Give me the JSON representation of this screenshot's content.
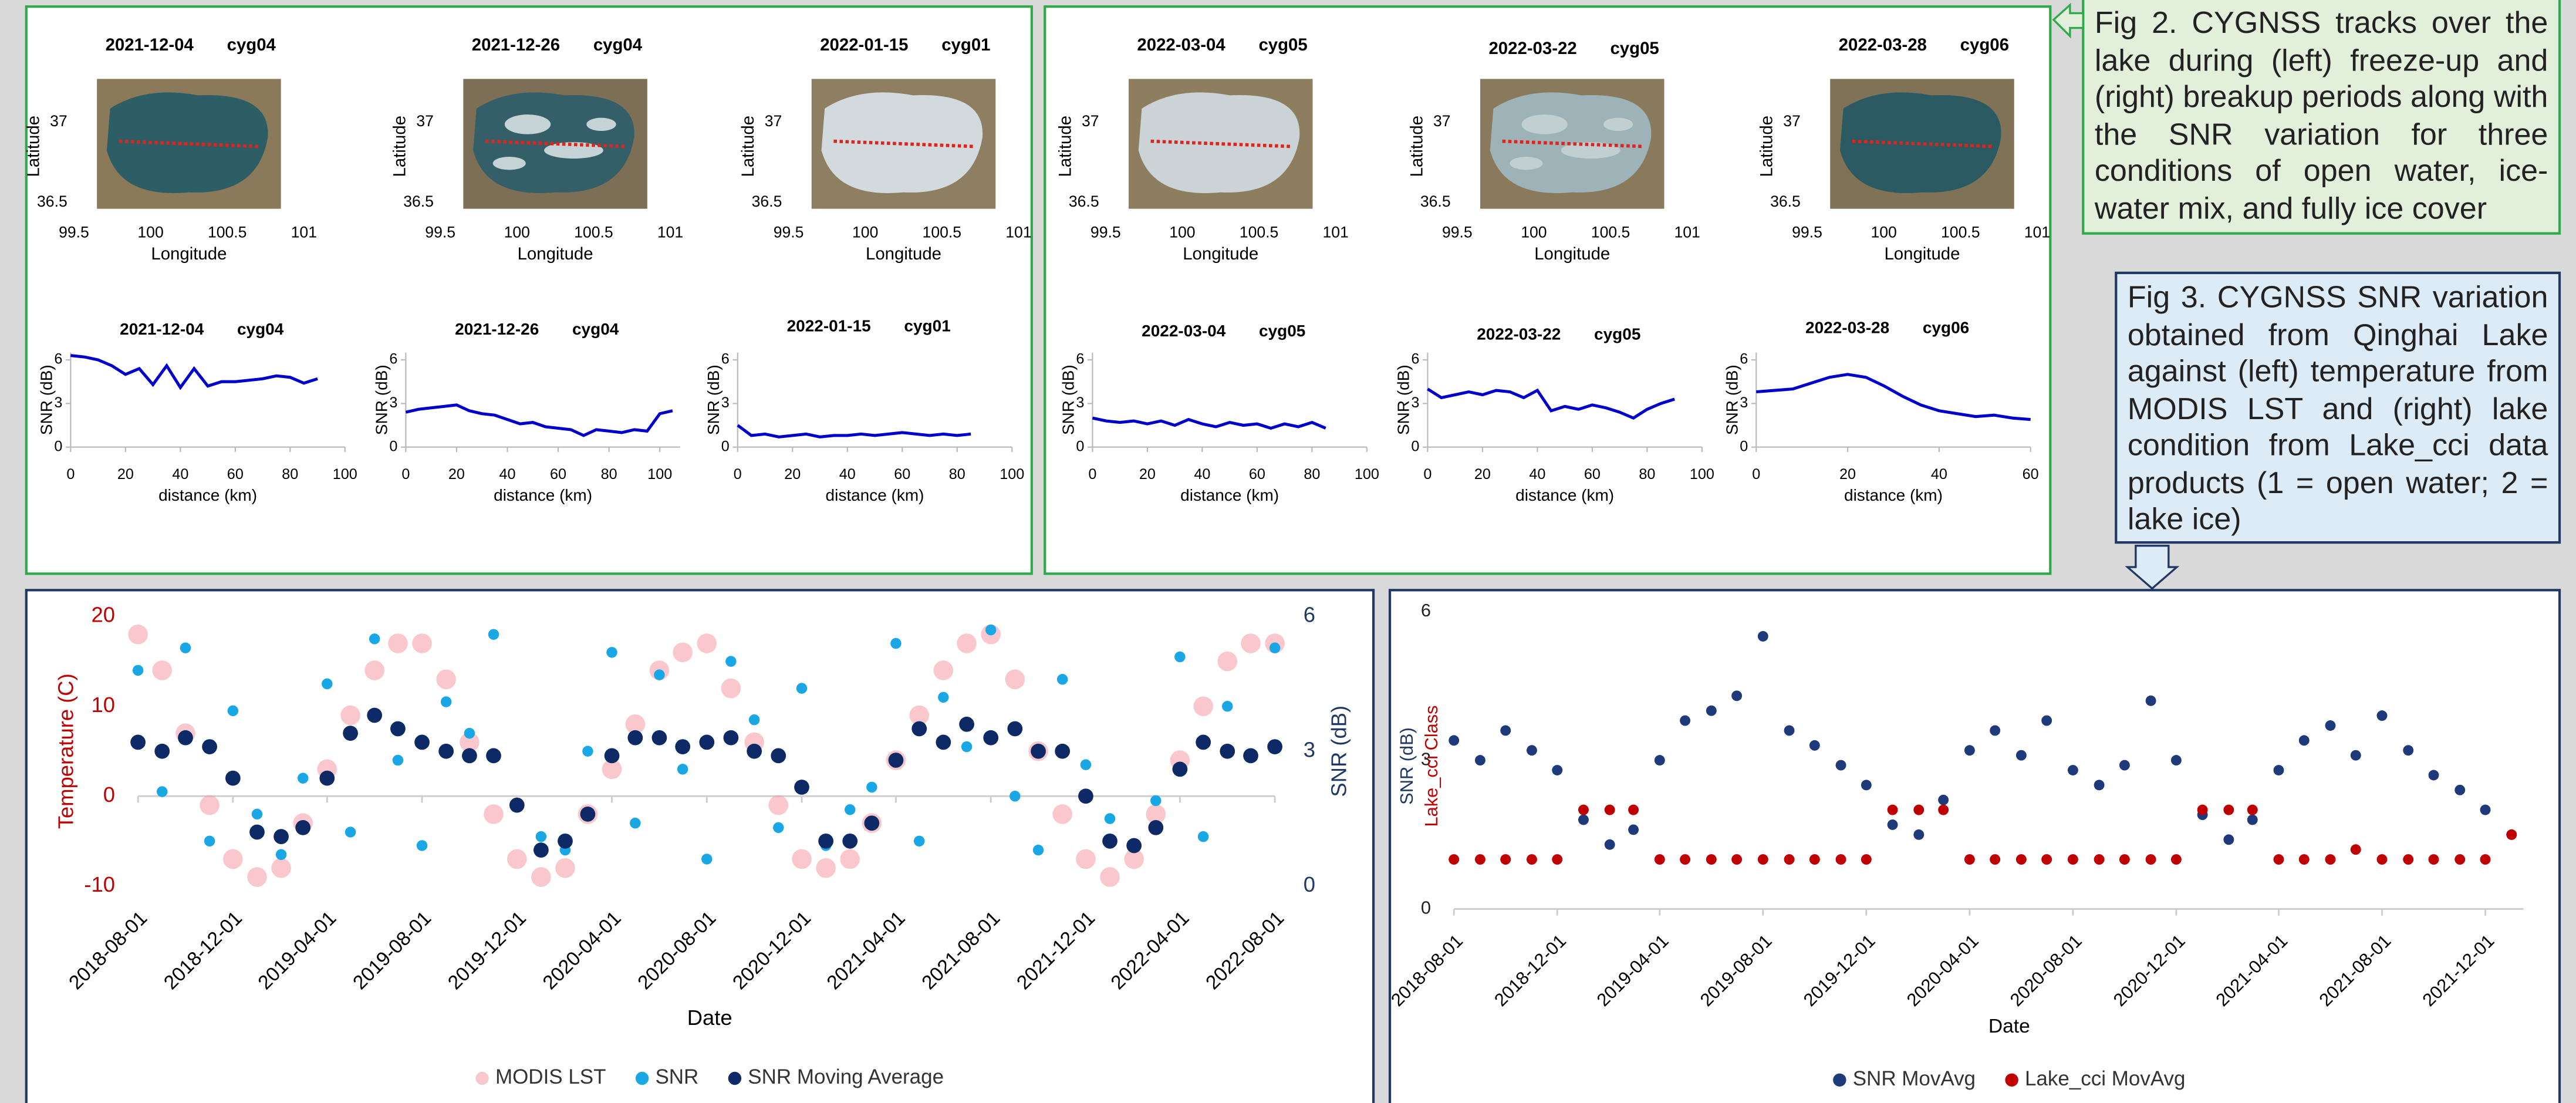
{
  "captions": {
    "fig2": "Fig 2. CYGNSS tracks over the lake during (left) freeze-up and (right) breakup periods along with the SNR variation for three conditions of open water, ice-water mix, and fully ice cover",
    "fig3": "Fig 3. CYGNSS SNR variation obtained from Qinghai Lake against (left) temperature from MODIS LST and (right) lake condition from Lake_cci data products (1 = open water; 2 = lake ice)"
  },
  "chart_data": [
    {
      "type": "map",
      "title": "2021-12-04",
      "satellite": "cyg04",
      "xlabel": "Longitude",
      "ylabel": "Latitude",
      "xlim": [
        99.5,
        101
      ],
      "xticks": [
        99.5,
        100,
        100.5,
        101
      ],
      "ylim": [
        36.4,
        37.3
      ],
      "yticks": [
        36.5,
        37
      ]
    },
    {
      "type": "map",
      "title": "2021-12-26",
      "satellite": "cyg04",
      "xlabel": "Longitude",
      "ylabel": "Latitude",
      "xlim": [
        99.5,
        101
      ],
      "xticks": [
        99.5,
        100,
        100.5,
        101
      ],
      "ylim": [
        36.4,
        37.3
      ],
      "yticks": [
        36.5,
        37
      ]
    },
    {
      "type": "map",
      "title": "2022-01-15",
      "satellite": "cyg01",
      "xlabel": "Longitude",
      "ylabel": "Latitude",
      "xlim": [
        99.5,
        101
      ],
      "xticks": [
        99.5,
        100,
        100.5,
        101
      ],
      "ylim": [
        36.4,
        37.3
      ],
      "yticks": [
        36.5,
        37
      ]
    },
    {
      "type": "map",
      "title": "2022-03-04",
      "satellite": "cyg05",
      "xlabel": "Longitude",
      "ylabel": "Latitude",
      "xlim": [
        99.5,
        101
      ],
      "xticks": [
        99.5,
        100,
        100.5,
        101
      ],
      "ylim": [
        36.4,
        37.3
      ],
      "yticks": [
        36.5,
        37
      ]
    },
    {
      "type": "map",
      "title": "2022-03-22",
      "satellite": "cyg05",
      "xlabel": "Longitude",
      "ylabel": "Latitude",
      "xlim": [
        99.5,
        101
      ],
      "xticks": [
        99.5,
        100,
        100.5,
        101
      ],
      "ylim": [
        36.4,
        37.3
      ],
      "yticks": [
        36.5,
        37
      ]
    },
    {
      "type": "map",
      "title": "2022-03-28",
      "satellite": "cyg06",
      "xlabel": "Longitude",
      "ylabel": "Latitude",
      "xlim": [
        99.5,
        101
      ],
      "xticks": [
        99.5,
        100,
        100.5,
        101
      ],
      "ylim": [
        36.4,
        37.3
      ],
      "yticks": [
        36.5,
        37
      ]
    },
    {
      "type": "line",
      "title": "2021-12-04",
      "satellite": "cyg04",
      "xlabel": "distance (km)",
      "ylabel": "SNR (dB)",
      "color": "#0000cc",
      "xlim": [
        0,
        100
      ],
      "xticks": [
        0,
        20,
        40,
        60,
        80,
        100
      ],
      "ylim": [
        0,
        6.5
      ],
      "yticks": [
        0,
        3,
        6
      ],
      "x": [
        0,
        5,
        10,
        15,
        20,
        25,
        30,
        35,
        40,
        45,
        50,
        55,
        60,
        65,
        70,
        75,
        80,
        85,
        90
      ],
      "values": [
        6.3,
        6.2,
        6.0,
        5.6,
        5.0,
        5.4,
        4.3,
        5.6,
        4.1,
        5.4,
        4.2,
        4.5,
        4.5,
        4.6,
        4.7,
        4.9,
        4.8,
        4.4,
        4.7
      ]
    },
    {
      "type": "line",
      "title": "2021-12-26",
      "satellite": "cyg04",
      "xlabel": "distance (km)",
      "ylabel": "SNR (dB)",
      "color": "#0000cc",
      "xlim": [
        0,
        108
      ],
      "xticks": [
        0,
        20,
        40,
        60,
        80,
        100
      ],
      "ylim": [
        0,
        6.5
      ],
      "yticks": [
        0,
        3,
        6
      ],
      "x": [
        0,
        5,
        10,
        15,
        20,
        25,
        30,
        35,
        40,
        45,
        50,
        55,
        60,
        65,
        70,
        75,
        80,
        85,
        90,
        95,
        100,
        105
      ],
      "values": [
        2.4,
        2.6,
        2.7,
        2.8,
        2.9,
        2.5,
        2.3,
        2.2,
        1.9,
        1.6,
        1.7,
        1.4,
        1.3,
        1.2,
        0.8,
        1.2,
        1.1,
        1.0,
        1.2,
        1.1,
        2.3,
        2.5
      ]
    },
    {
      "type": "line",
      "title": "2022-01-15",
      "satellite": "cyg01",
      "xlabel": "distance (km)",
      "ylabel": "SNR (dB)",
      "color": "#0000cc",
      "xlim": [
        0,
        100
      ],
      "xticks": [
        0,
        20,
        40,
        60,
        80,
        100
      ],
      "ylim": [
        0,
        6.5
      ],
      "yticks": [
        0,
        3,
        6
      ],
      "x": [
        0,
        5,
        10,
        15,
        20,
        25,
        30,
        35,
        40,
        45,
        50,
        55,
        60,
        65,
        70,
        75,
        80,
        85
      ],
      "values": [
        1.5,
        0.8,
        0.9,
        0.7,
        0.8,
        0.9,
        0.7,
        0.8,
        0.8,
        0.9,
        0.8,
        0.9,
        1.0,
        0.9,
        0.8,
        0.9,
        0.8,
        0.9
      ]
    },
    {
      "type": "line",
      "title": "2022-03-04",
      "satellite": "cyg05",
      "xlabel": "distance (km)",
      "ylabel": "SNR (dB)",
      "color": "#0000cc",
      "xlim": [
        0,
        100
      ],
      "xticks": [
        0,
        20,
        40,
        60,
        80,
        100
      ],
      "ylim": [
        0,
        6.5
      ],
      "yticks": [
        0,
        3,
        6
      ],
      "x": [
        0,
        5,
        10,
        15,
        20,
        25,
        30,
        35,
        40,
        45,
        50,
        55,
        60,
        65,
        70,
        75,
        80,
        85
      ],
      "values": [
        2.0,
        1.8,
        1.7,
        1.8,
        1.6,
        1.8,
        1.5,
        1.9,
        1.6,
        1.4,
        1.7,
        1.5,
        1.6,
        1.3,
        1.6,
        1.4,
        1.7,
        1.3
      ]
    },
    {
      "type": "line",
      "title": "2022-03-22",
      "satellite": "cyg05",
      "xlabel": "distance (km)",
      "ylabel": "SNR (dB)",
      "color": "#0000cc",
      "xlim": [
        0,
        100
      ],
      "xticks": [
        0,
        20,
        40,
        60,
        80,
        100
      ],
      "ylim": [
        0,
        6.5
      ],
      "yticks": [
        0,
        3,
        6
      ],
      "x": [
        0,
        5,
        10,
        15,
        20,
        25,
        30,
        35,
        40,
        45,
        50,
        55,
        60,
        65,
        70,
        75,
        80,
        85,
        90
      ],
      "values": [
        4.0,
        3.4,
        3.6,
        3.8,
        3.6,
        3.9,
        3.8,
        3.4,
        3.9,
        2.5,
        2.8,
        2.6,
        2.9,
        2.7,
        2.4,
        2.0,
        2.6,
        3.0,
        3.3
      ]
    },
    {
      "type": "line",
      "title": "2022-03-28",
      "satellite": "cyg06",
      "xlabel": "distance (km)",
      "ylabel": "SNR (dB)",
      "color": "#0000cc",
      "xlim": [
        0,
        60
      ],
      "xticks": [
        0,
        20,
        40,
        60
      ],
      "ylim": [
        0,
        6.5
      ],
      "yticks": [
        0,
        3,
        6
      ],
      "x": [
        0,
        4,
        8,
        12,
        16,
        20,
        24,
        28,
        32,
        36,
        40,
        44,
        48,
        52,
        56,
        60
      ],
      "values": [
        3.8,
        3.9,
        4.0,
        4.4,
        4.8,
        5.0,
        4.8,
        4.2,
        3.5,
        2.9,
        2.5,
        2.3,
        2.1,
        2.2,
        2.0,
        1.9
      ]
    },
    {
      "type": "scatter",
      "xlabel": "Date",
      "ylabel": "Temperature (C)",
      "y2label": "SNR (dB)",
      "legend": "bottom",
      "x": [
        "2018-08-01",
        "2018-09-01",
        "2018-10-01",
        "2018-11-01",
        "2018-12-01",
        "2019-01-01",
        "2019-02-01",
        "2019-03-01",
        "2019-04-01",
        "2019-05-01",
        "2019-06-01",
        "2019-07-01",
        "2019-08-01",
        "2019-09-01",
        "2019-10-01",
        "2019-11-01",
        "2019-12-01",
        "2020-01-01",
        "2020-02-01",
        "2020-03-01",
        "2020-04-01",
        "2020-05-01",
        "2020-06-01",
        "2020-07-01",
        "2020-08-01",
        "2020-09-01",
        "2020-10-01",
        "2020-11-01",
        "2020-12-01",
        "2021-01-01",
        "2021-02-01",
        "2021-03-01",
        "2021-04-01",
        "2021-05-01",
        "2021-06-01",
        "2021-07-01",
        "2021-08-01",
        "2021-09-01",
        "2021-10-01",
        "2021-11-01",
        "2021-12-01",
        "2022-01-01",
        "2022-02-01",
        "2022-03-01",
        "2022-04-01",
        "2022-05-01",
        "2022-06-01",
        "2022-07-01",
        "2022-08-01"
      ],
      "xlim": [
        "2018-08-01",
        "2022-08-01"
      ],
      "xticks": [
        "2018-08-01",
        "2018-12-01",
        "2019-04-01",
        "2019-08-01",
        "2019-12-01",
        "2020-04-01",
        "2020-08-01",
        "2020-12-01",
        "2021-04-01",
        "2021-08-01",
        "2021-12-01",
        "2022-04-01",
        "2022-08-01"
      ],
      "ylim": [
        -10,
        20
      ],
      "yticks": [
        -10,
        0,
        10,
        20
      ],
      "y2lim": [
        0,
        6
      ],
      "y2ticks": [
        0,
        3,
        6
      ],
      "series": [
        {
          "name": "MODIS LST",
          "color": "#f4909a",
          "axis": "y",
          "values": [
            18,
            14,
            7,
            -1,
            -7,
            -9,
            -8,
            -3,
            3,
            9,
            14,
            17,
            17,
            13,
            6,
            -2,
            -7,
            -9,
            -8,
            -2,
            3,
            8,
            14,
            16,
            17,
            12,
            6,
            -1,
            -7,
            -8,
            -7,
            -3,
            4,
            9,
            14,
            17,
            18,
            13,
            5,
            -2,
            -7,
            -9,
            -7,
            -2,
            4,
            10,
            15,
            17,
            17
          ]
        },
        {
          "name": "SNR",
          "color": "#1aa7e6",
          "axis": "y2",
          "values": [
            4.8,
            2.1,
            5.3,
            1.0,
            3.9,
            1.6,
            0.7,
            2.4,
            4.5,
            1.2,
            5.5,
            2.8,
            0.9,
            4.1,
            3.4,
            5.6,
            1.8,
            1.1,
            0.8,
            3.0,
            5.2,
            1.4,
            4.7,
            2.6,
            0.6,
            5.0,
            3.7,
            1.3,
            4.4,
            0.9,
            1.7,
            2.2,
            5.4,
            1.0,
            4.2,
            3.1,
            5.7,
            2.0,
            0.8,
            4.6,
            2.7,
            1.5,
            0.9,
            1.9,
            5.1,
            1.1,
            4.0,
            2.9,
            5.3
          ]
        },
        {
          "name": "SNR Moving Average",
          "color": "#0d2a66",
          "axis": "y2",
          "values": [
            3.2,
            3.0,
            3.3,
            3.1,
            2.4,
            1.2,
            1.1,
            1.3,
            2.4,
            3.4,
            3.8,
            3.5,
            3.2,
            3.0,
            2.9,
            2.9,
            1.8,
            0.8,
            1.0,
            1.6,
            2.9,
            3.3,
            3.3,
            3.1,
            3.2,
            3.3,
            3.0,
            2.9,
            2.2,
            1.0,
            1.0,
            1.4,
            2.8,
            3.5,
            3.2,
            3.6,
            3.3,
            3.5,
            3.0,
            3.0,
            2.0,
            1.0,
            0.9,
            1.3,
            2.6,
            3.2,
            3.0,
            2.9,
            3.1
          ]
        }
      ]
    },
    {
      "type": "scatter",
      "xlabel": "Date",
      "ylabel": "SNR (dB)",
      "ylabel2": "Lake_cci Class",
      "legend": "bottom",
      "x": [
        "2018-08-01",
        "2018-09-01",
        "2018-10-01",
        "2018-11-01",
        "2018-12-01",
        "2019-01-01",
        "2019-02-01",
        "2019-03-01",
        "2019-04-01",
        "2019-05-01",
        "2019-06-01",
        "2019-07-01",
        "2019-08-01",
        "2019-09-01",
        "2019-10-01",
        "2019-11-01",
        "2019-12-01",
        "2020-01-01",
        "2020-02-01",
        "2020-03-01",
        "2020-04-01",
        "2020-05-01",
        "2020-06-01",
        "2020-07-01",
        "2020-08-01",
        "2020-09-01",
        "2020-10-01",
        "2020-11-01",
        "2020-12-01",
        "2021-01-01",
        "2021-02-01",
        "2021-03-01",
        "2021-04-01",
        "2021-05-01",
        "2021-06-01",
        "2021-07-01",
        "2021-08-01",
        "2021-09-01",
        "2021-10-01",
        "2021-11-01",
        "2021-12-01",
        "2022-01-01"
      ],
      "xlim": [
        "2018-08-01",
        "2022-01-15"
      ],
      "xticks": [
        "2018-08-01",
        "2018-12-01",
        "2019-04-01",
        "2019-08-01",
        "2019-12-01",
        "2020-04-01",
        "2020-08-01",
        "2020-12-01",
        "2021-04-01",
        "2021-08-01",
        "2021-12-01"
      ],
      "ylim": [
        0,
        6
      ],
      "yticks": [
        0,
        3,
        6
      ],
      "series": [
        {
          "name": "SNR MovAvg",
          "color": "#1f3a7a",
          "values": [
            3.4,
            3.0,
            3.6,
            3.2,
            2.8,
            1.8,
            1.3,
            1.6,
            3.0,
            3.8,
            4.0,
            4.3,
            5.5,
            3.6,
            3.3,
            2.9,
            2.5,
            1.7,
            1.5,
            2.2,
            3.2,
            3.6,
            3.1,
            3.8,
            2.8,
            2.5,
            2.9,
            4.2,
            3.0,
            1.9,
            1.4,
            1.8,
            2.8,
            3.4,
            3.7,
            3.1,
            3.9,
            3.2,
            2.7,
            2.4,
            2.0,
            1.5
          ]
        },
        {
          "name": "Lake_cci MovAvg",
          "color": "#c00000",
          "values": [
            1,
            1,
            1,
            1,
            1,
            2,
            2,
            2,
            1,
            1,
            1,
            1,
            1,
            1,
            1,
            1,
            1,
            2,
            2,
            2,
            1,
            1,
            1,
            1,
            1,
            1,
            1,
            1,
            1,
            2,
            2,
            2,
            1,
            1,
            1,
            1.2,
            1,
            1,
            1,
            1,
            1,
            1.5
          ]
        }
      ]
    }
  ]
}
